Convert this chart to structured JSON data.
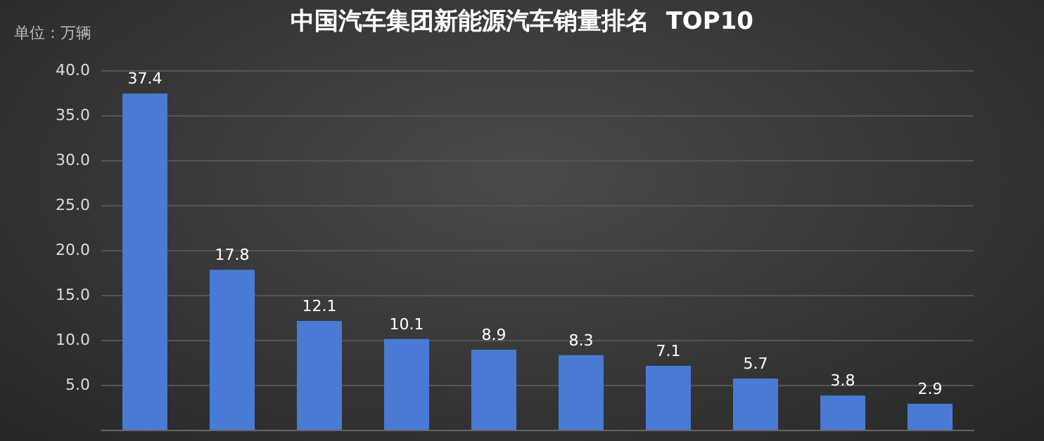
{
  "chart_data": {
    "type": "bar",
    "title": "中国汽车集团新能源汽车销量排名  TOP10",
    "annotations": [
      "单位：万辆"
    ],
    "categories": [
      null,
      null,
      null,
      null,
      null,
      null,
      null,
      null,
      null,
      null
    ],
    "values": [
      37.4,
      17.8,
      12.1,
      10.1,
      8.9,
      8.3,
      7.1,
      5.7,
      3.8,
      2.9
    ],
    "color": "#4a7bd4",
    "ylim": [
      0,
      40
    ],
    "yticks": [
      {
        "value": 5,
        "label": "5.0"
      },
      {
        "value": 10,
        "label": "10.0"
      },
      {
        "value": 15,
        "label": "15.0"
      },
      {
        "value": 20,
        "label": "20.0"
      },
      {
        "value": 25,
        "label": "25.0"
      },
      {
        "value": 30,
        "label": "30.0"
      },
      {
        "value": 35,
        "label": "35.0"
      },
      {
        "value": 40,
        "label": "40.0"
      }
    ],
    "grid": true,
    "data_labels": true
  }
}
